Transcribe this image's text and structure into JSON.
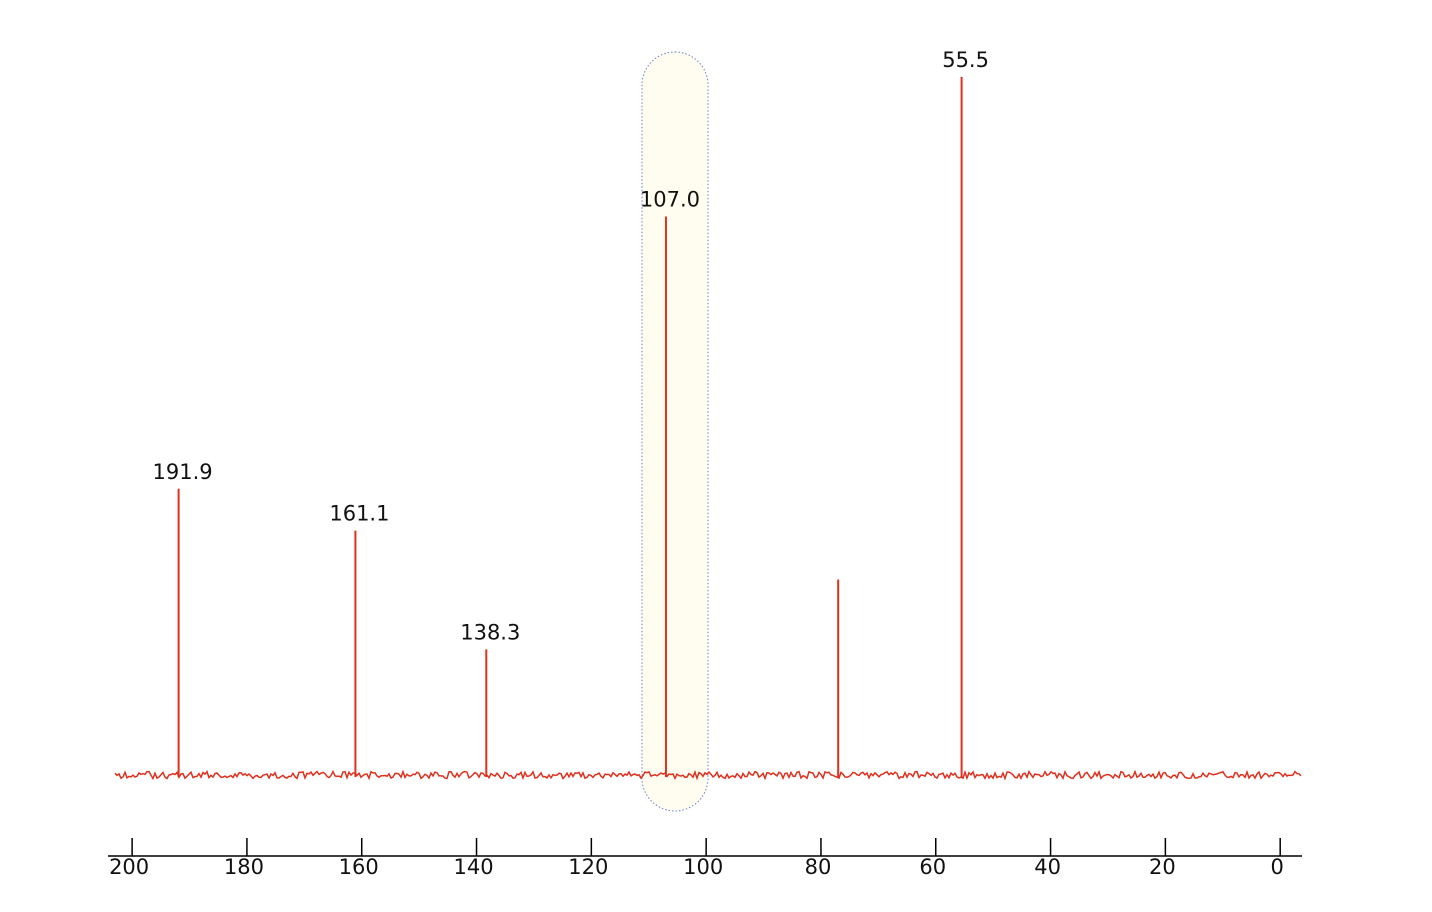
{
  "chart_data": {
    "type": "spectrum",
    "x": [
      191.9,
      161.1,
      138.3,
      107.0,
      77.0,
      55.5
    ],
    "values": [
      41,
      35,
      18,
      80,
      28,
      100
    ],
    "peak_labels": [
      "191.9",
      "161.1",
      "138.3",
      "107.0",
      null,
      "55.5"
    ],
    "color": "#e0301e",
    "xlim": [
      204.2,
      -3.8
    ],
    "xticks": [
      200,
      180,
      160,
      140,
      120,
      100,
      80,
      60,
      40,
      20,
      0
    ],
    "ylim": [
      0,
      105
    ]
  }
}
